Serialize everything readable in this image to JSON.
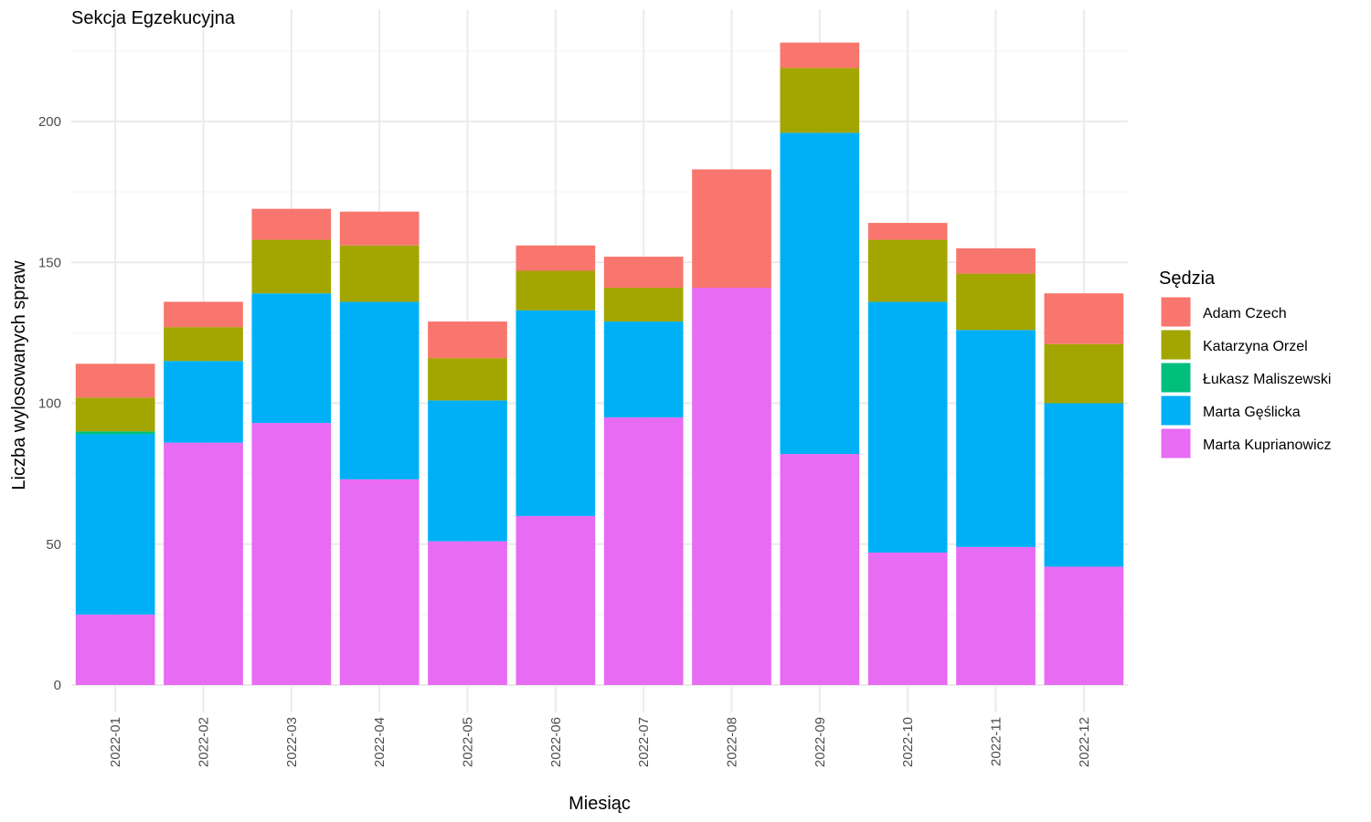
{
  "chart_data": {
    "type": "bar",
    "stacked": true,
    "title": "Sekcja Egzekucyjna",
    "xlabel": "Miesiąc",
    "ylabel": "Liczba wylosowanych spraw",
    "ylim": [
      0,
      230
    ],
    "yticks": [
      0,
      50,
      100,
      150,
      200
    ],
    "grid": true,
    "legend_title": "Sędzia",
    "legend_position": "right",
    "categories": [
      "2022-01",
      "2022-02",
      "2022-03",
      "2022-04",
      "2022-05",
      "2022-06",
      "2022-07",
      "2022-08",
      "2022-09",
      "2022-10",
      "2022-11",
      "2022-12"
    ],
    "series": [
      {
        "name": "Adam Czech",
        "color": "#F8766D",
        "values": [
          12,
          9,
          11,
          12,
          13,
          9,
          11,
          42,
          9,
          6,
          9,
          18
        ]
      },
      {
        "name": "Katarzyna Orzel",
        "color": "#A3A500",
        "values": [
          12,
          12,
          19,
          20,
          15,
          14,
          12,
          0,
          23,
          22,
          20,
          21
        ]
      },
      {
        "name": "Łukasz Maliszewski",
        "color": "#00BF7D",
        "values": [
          1,
          0,
          0,
          0,
          0,
          0,
          0,
          0,
          0,
          0,
          0,
          0
        ]
      },
      {
        "name": "Marta Gęślicka",
        "color": "#00B0F6",
        "values": [
          64,
          29,
          46,
          63,
          50,
          73,
          34,
          0,
          114,
          89,
          77,
          58
        ]
      },
      {
        "name": "Marta Kuprianowicz",
        "color": "#E76BF3",
        "values": [
          25,
          86,
          93,
          73,
          51,
          60,
          95,
          141,
          82,
          47,
          49,
          42
        ]
      }
    ]
  }
}
